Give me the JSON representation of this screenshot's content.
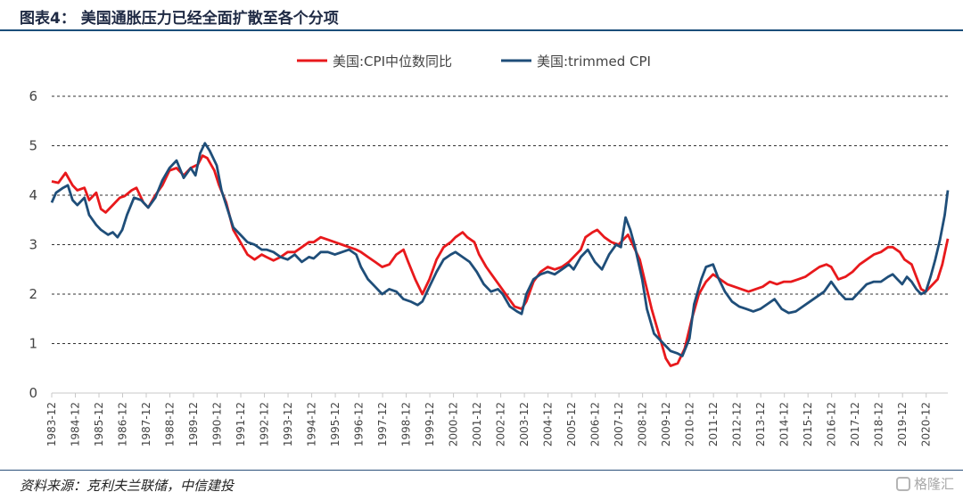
{
  "figure": {
    "title": "图表4： 美国通胀压力已经全面扩散至各个分项",
    "source": "资料来源：克利夫兰联储，中信建投",
    "watermark": "格隆汇"
  },
  "chart_data": {
    "type": "line",
    "ylim": [
      0,
      6
    ],
    "y_ticks": [
      0,
      1,
      2,
      3,
      4,
      5,
      6
    ],
    "y_tick_labels": [
      "0",
      "1",
      "2",
      "3",
      "4",
      "5",
      "6"
    ],
    "x_range": [
      1983.917,
      2021.833
    ],
    "x_tick_labels": [
      "1983-12",
      "1984-12",
      "1985-12",
      "1986-12",
      "1987-12",
      "1988-12",
      "1989-12",
      "1990-12",
      "1991-12",
      "1992-12",
      "1993-12",
      "1994-12",
      "1995-12",
      "1996-12",
      "1997-12",
      "1998-12",
      "1999-12",
      "2000-12",
      "2001-12",
      "2002-12",
      "2003-12",
      "2004-12",
      "2005-12",
      "2006-12",
      "2007-12",
      "2008-12",
      "2009-12",
      "2010-12",
      "2011-12",
      "2012-12",
      "2013-12",
      "2014-12",
      "2015-12",
      "2016-12",
      "2017-12",
      "2018-12",
      "2019-12",
      "2020-12"
    ],
    "grid": "horizontal dashed",
    "legend_position": "top-center",
    "series": [
      {
        "name": "美国:CPI中位数同比",
        "color": "#e8191c",
        "points": [
          [
            1983.917,
            4.28
          ],
          [
            1984.2,
            4.25
          ],
          [
            1984.5,
            4.45
          ],
          [
            1984.8,
            4.2
          ],
          [
            1985.0,
            4.1
          ],
          [
            1985.3,
            4.15
          ],
          [
            1985.5,
            3.9
          ],
          [
            1985.8,
            4.05
          ],
          [
            1986.0,
            3.72
          ],
          [
            1986.2,
            3.65
          ],
          [
            1986.5,
            3.8
          ],
          [
            1986.8,
            3.95
          ],
          [
            1987.0,
            3.98
          ],
          [
            1987.3,
            4.1
          ],
          [
            1987.5,
            4.15
          ],
          [
            1987.8,
            3.85
          ],
          [
            1988.0,
            3.75
          ],
          [
            1988.3,
            4.0
          ],
          [
            1988.6,
            4.2
          ],
          [
            1988.9,
            4.5
          ],
          [
            1989.2,
            4.55
          ],
          [
            1989.5,
            4.4
          ],
          [
            1989.8,
            4.55
          ],
          [
            1990.1,
            4.62
          ],
          [
            1990.3,
            4.8
          ],
          [
            1990.5,
            4.75
          ],
          [
            1990.8,
            4.5
          ],
          [
            1991.0,
            4.2
          ],
          [
            1991.3,
            3.85
          ],
          [
            1991.6,
            3.3
          ],
          [
            1991.9,
            3.05
          ],
          [
            1992.2,
            2.8
          ],
          [
            1992.5,
            2.7
          ],
          [
            1992.8,
            2.8
          ],
          [
            1993.0,
            2.75
          ],
          [
            1993.3,
            2.68
          ],
          [
            1993.6,
            2.75
          ],
          [
            1993.9,
            2.85
          ],
          [
            1994.2,
            2.85
          ],
          [
            1994.5,
            2.95
          ],
          [
            1994.8,
            3.05
          ],
          [
            1995.0,
            3.05
          ],
          [
            1995.3,
            3.15
          ],
          [
            1995.6,
            3.1
          ],
          [
            1995.9,
            3.05
          ],
          [
            1996.2,
            3.0
          ],
          [
            1996.5,
            2.95
          ],
          [
            1996.8,
            2.9
          ],
          [
            1997.0,
            2.85
          ],
          [
            1997.3,
            2.75
          ],
          [
            1997.6,
            2.65
          ],
          [
            1997.9,
            2.55
          ],
          [
            1998.2,
            2.6
          ],
          [
            1998.5,
            2.8
          ],
          [
            1998.8,
            2.9
          ],
          [
            1999.0,
            2.65
          ],
          [
            1999.3,
            2.3
          ],
          [
            1999.6,
            2.0
          ],
          [
            1999.9,
            2.3
          ],
          [
            2000.2,
            2.7
          ],
          [
            2000.5,
            2.95
          ],
          [
            2000.8,
            3.05
          ],
          [
            2001.0,
            3.15
          ],
          [
            2001.3,
            3.25
          ],
          [
            2001.5,
            3.15
          ],
          [
            2001.8,
            3.05
          ],
          [
            2002.0,
            2.8
          ],
          [
            2002.3,
            2.55
          ],
          [
            2002.6,
            2.35
          ],
          [
            2002.9,
            2.15
          ],
          [
            2003.2,
            1.95
          ],
          [
            2003.5,
            1.75
          ],
          [
            2003.8,
            1.7
          ],
          [
            2004.0,
            1.85
          ],
          [
            2004.3,
            2.25
          ],
          [
            2004.6,
            2.45
          ],
          [
            2004.9,
            2.55
          ],
          [
            2005.2,
            2.5
          ],
          [
            2005.5,
            2.55
          ],
          [
            2005.8,
            2.65
          ],
          [
            2006.0,
            2.75
          ],
          [
            2006.3,
            2.9
          ],
          [
            2006.5,
            3.15
          ],
          [
            2006.8,
            3.25
          ],
          [
            2007.0,
            3.3
          ],
          [
            2007.3,
            3.15
          ],
          [
            2007.6,
            3.05
          ],
          [
            2007.9,
            3.0
          ],
          [
            2008.1,
            3.1
          ],
          [
            2008.3,
            3.2
          ],
          [
            2008.5,
            3.0
          ],
          [
            2008.8,
            2.7
          ],
          [
            2009.0,
            2.3
          ],
          [
            2009.3,
            1.7
          ],
          [
            2009.6,
            1.2
          ],
          [
            2009.9,
            0.7
          ],
          [
            2010.1,
            0.55
          ],
          [
            2010.4,
            0.6
          ],
          [
            2010.7,
            0.9
          ],
          [
            2011.0,
            1.5
          ],
          [
            2011.3,
            2.0
          ],
          [
            2011.6,
            2.25
          ],
          [
            2011.9,
            2.4
          ],
          [
            2012.2,
            2.3
          ],
          [
            2012.5,
            2.2
          ],
          [
            2012.8,
            2.15
          ],
          [
            2013.1,
            2.1
          ],
          [
            2013.4,
            2.05
          ],
          [
            2013.7,
            2.1
          ],
          [
            2014.0,
            2.15
          ],
          [
            2014.3,
            2.25
          ],
          [
            2014.6,
            2.2
          ],
          [
            2014.9,
            2.25
          ],
          [
            2015.2,
            2.25
          ],
          [
            2015.5,
            2.3
          ],
          [
            2015.8,
            2.35
          ],
          [
            2016.1,
            2.45
          ],
          [
            2016.4,
            2.55
          ],
          [
            2016.7,
            2.6
          ],
          [
            2016.9,
            2.55
          ],
          [
            2017.2,
            2.3
          ],
          [
            2017.5,
            2.35
          ],
          [
            2017.8,
            2.45
          ],
          [
            2018.1,
            2.6
          ],
          [
            2018.4,
            2.7
          ],
          [
            2018.7,
            2.8
          ],
          [
            2019.0,
            2.85
          ],
          [
            2019.3,
            2.95
          ],
          [
            2019.5,
            2.95
          ],
          [
            2019.8,
            2.85
          ],
          [
            2020.0,
            2.7
          ],
          [
            2020.3,
            2.6
          ],
          [
            2020.5,
            2.35
          ],
          [
            2020.7,
            2.1
          ],
          [
            2020.9,
            2.05
          ],
          [
            2021.1,
            2.15
          ],
          [
            2021.4,
            2.3
          ],
          [
            2021.6,
            2.6
          ],
          [
            2021.833,
            3.12
          ]
        ]
      },
      {
        "name": "美国:trimmed CPI",
        "color": "#1f4e79",
        "points": [
          [
            1983.917,
            3.85
          ],
          [
            1984.1,
            4.05
          ],
          [
            1984.4,
            4.15
          ],
          [
            1984.6,
            4.2
          ],
          [
            1984.8,
            3.9
          ],
          [
            1985.0,
            3.8
          ],
          [
            1985.3,
            3.95
          ],
          [
            1985.5,
            3.6
          ],
          [
            1985.8,
            3.4
          ],
          [
            1986.0,
            3.3
          ],
          [
            1986.3,
            3.2
          ],
          [
            1986.5,
            3.25
          ],
          [
            1986.7,
            3.15
          ],
          [
            1986.9,
            3.3
          ],
          [
            1987.1,
            3.6
          ],
          [
            1987.4,
            3.95
          ],
          [
            1987.7,
            3.9
          ],
          [
            1988.0,
            3.75
          ],
          [
            1988.3,
            3.95
          ],
          [
            1988.6,
            4.3
          ],
          [
            1988.9,
            4.55
          ],
          [
            1989.2,
            4.7
          ],
          [
            1989.5,
            4.35
          ],
          [
            1989.8,
            4.55
          ],
          [
            1990.0,
            4.4
          ],
          [
            1990.2,
            4.85
          ],
          [
            1990.4,
            5.05
          ],
          [
            1990.6,
            4.9
          ],
          [
            1990.9,
            4.6
          ],
          [
            1991.1,
            4.1
          ],
          [
            1991.4,
            3.65
          ],
          [
            1991.6,
            3.35
          ],
          [
            1991.9,
            3.2
          ],
          [
            1992.2,
            3.05
          ],
          [
            1992.5,
            3.0
          ],
          [
            1992.8,
            2.9
          ],
          [
            1993.0,
            2.9
          ],
          [
            1993.3,
            2.85
          ],
          [
            1993.6,
            2.75
          ],
          [
            1993.9,
            2.7
          ],
          [
            1994.2,
            2.8
          ],
          [
            1994.5,
            2.65
          ],
          [
            1994.8,
            2.75
          ],
          [
            1995.0,
            2.72
          ],
          [
            1995.3,
            2.85
          ],
          [
            1995.6,
            2.85
          ],
          [
            1995.9,
            2.8
          ],
          [
            1996.2,
            2.85
          ],
          [
            1996.5,
            2.9
          ],
          [
            1996.8,
            2.8
          ],
          [
            1997.0,
            2.55
          ],
          [
            1997.3,
            2.3
          ],
          [
            1997.6,
            2.15
          ],
          [
            1997.9,
            2.0
          ],
          [
            1998.2,
            2.1
          ],
          [
            1998.5,
            2.05
          ],
          [
            1998.8,
            1.9
          ],
          [
            1999.1,
            1.85
          ],
          [
            1999.4,
            1.78
          ],
          [
            1999.6,
            1.85
          ],
          [
            1999.9,
            2.15
          ],
          [
            2000.2,
            2.45
          ],
          [
            2000.5,
            2.7
          ],
          [
            2000.8,
            2.8
          ],
          [
            2001.0,
            2.85
          ],
          [
            2001.3,
            2.75
          ],
          [
            2001.6,
            2.65
          ],
          [
            2001.9,
            2.45
          ],
          [
            2002.2,
            2.2
          ],
          [
            2002.5,
            2.05
          ],
          [
            2002.8,
            2.1
          ],
          [
            2003.0,
            2.0
          ],
          [
            2003.3,
            1.75
          ],
          [
            2003.6,
            1.65
          ],
          [
            2003.8,
            1.6
          ],
          [
            2004.0,
            2.0
          ],
          [
            2004.3,
            2.3
          ],
          [
            2004.6,
            2.4
          ],
          [
            2004.9,
            2.45
          ],
          [
            2005.2,
            2.4
          ],
          [
            2005.5,
            2.5
          ],
          [
            2005.8,
            2.6
          ],
          [
            2006.0,
            2.5
          ],
          [
            2006.3,
            2.75
          ],
          [
            2006.6,
            2.9
          ],
          [
            2006.9,
            2.65
          ],
          [
            2007.2,
            2.5
          ],
          [
            2007.5,
            2.8
          ],
          [
            2007.8,
            3.0
          ],
          [
            2008.0,
            2.95
          ],
          [
            2008.2,
            3.55
          ],
          [
            2008.4,
            3.3
          ],
          [
            2008.6,
            2.95
          ],
          [
            2008.9,
            2.3
          ],
          [
            2009.1,
            1.7
          ],
          [
            2009.4,
            1.2
          ],
          [
            2009.6,
            1.1
          ],
          [
            2009.8,
            1.0
          ],
          [
            2010.1,
            0.85
          ],
          [
            2010.4,
            0.8
          ],
          [
            2010.6,
            0.75
          ],
          [
            2010.9,
            1.1
          ],
          [
            2011.1,
            1.8
          ],
          [
            2011.4,
            2.3
          ],
          [
            2011.6,
            2.55
          ],
          [
            2011.9,
            2.6
          ],
          [
            2012.1,
            2.35
          ],
          [
            2012.4,
            2.05
          ],
          [
            2012.7,
            1.85
          ],
          [
            2013.0,
            1.75
          ],
          [
            2013.3,
            1.7
          ],
          [
            2013.6,
            1.65
          ],
          [
            2013.9,
            1.7
          ],
          [
            2014.2,
            1.8
          ],
          [
            2014.5,
            1.9
          ],
          [
            2014.8,
            1.7
          ],
          [
            2015.1,
            1.62
          ],
          [
            2015.4,
            1.65
          ],
          [
            2015.7,
            1.75
          ],
          [
            2016.0,
            1.85
          ],
          [
            2016.3,
            1.95
          ],
          [
            2016.6,
            2.05
          ],
          [
            2016.9,
            2.25
          ],
          [
            2017.2,
            2.05
          ],
          [
            2017.5,
            1.9
          ],
          [
            2017.8,
            1.9
          ],
          [
            2018.1,
            2.05
          ],
          [
            2018.4,
            2.2
          ],
          [
            2018.7,
            2.25
          ],
          [
            2019.0,
            2.25
          ],
          [
            2019.3,
            2.35
          ],
          [
            2019.5,
            2.4
          ],
          [
            2019.7,
            2.3
          ],
          [
            2019.9,
            2.2
          ],
          [
            2020.1,
            2.35
          ],
          [
            2020.3,
            2.25
          ],
          [
            2020.5,
            2.1
          ],
          [
            2020.7,
            2.0
          ],
          [
            2020.9,
            2.05
          ],
          [
            2021.1,
            2.35
          ],
          [
            2021.3,
            2.7
          ],
          [
            2021.5,
            3.1
          ],
          [
            2021.7,
            3.6
          ],
          [
            2021.833,
            4.1
          ]
        ]
      }
    ]
  }
}
